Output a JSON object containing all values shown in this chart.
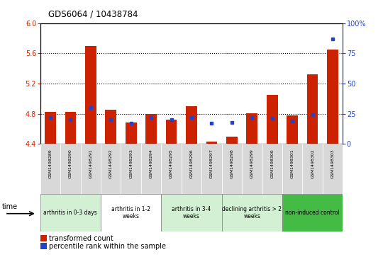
{
  "title": "GDS6064 / 10438784",
  "samples": [
    "GSM1498289",
    "GSM1498290",
    "GSM1498291",
    "GSM1498292",
    "GSM1498293",
    "GSM1498294",
    "GSM1498295",
    "GSM1498296",
    "GSM1498297",
    "GSM1498298",
    "GSM1498299",
    "GSM1498300",
    "GSM1498301",
    "GSM1498302",
    "GSM1498303"
  ],
  "red_values": [
    4.82,
    4.82,
    5.7,
    4.85,
    4.68,
    4.8,
    4.72,
    4.9,
    4.43,
    4.5,
    4.81,
    5.05,
    4.78,
    5.32,
    5.65
  ],
  "blue_percentile": [
    22,
    20,
    30,
    20,
    17,
    22,
    20,
    22,
    17,
    18,
    22,
    21,
    19,
    24,
    87
  ],
  "ymin": 4.4,
  "ymax": 6.0,
  "yticks": [
    4.4,
    4.8,
    5.2,
    5.6,
    6.0
  ],
  "y2min": 0,
  "y2max": 100,
  "y2ticks": [
    0,
    25,
    50,
    75,
    100
  ],
  "groups": [
    {
      "label": "arthritis in 0-3 days",
      "start": 0,
      "end": 3,
      "color": "#d4f0d4"
    },
    {
      "label": "arthritis in 1-2\nweeks",
      "start": 3,
      "end": 6,
      "color": "#ffffff"
    },
    {
      "label": "arthritis in 3-4\nweeks",
      "start": 6,
      "end": 9,
      "color": "#d4f0d4"
    },
    {
      "label": "declining arthritis > 2\nweeks",
      "start": 9,
      "end": 12,
      "color": "#d4f0d4"
    },
    {
      "label": "non-induced control",
      "start": 12,
      "end": 15,
      "color": "#44bb44"
    }
  ],
  "bar_color": "#cc2200",
  "blue_color": "#2244cc",
  "bar_width": 0.55,
  "baseline": 4.4
}
